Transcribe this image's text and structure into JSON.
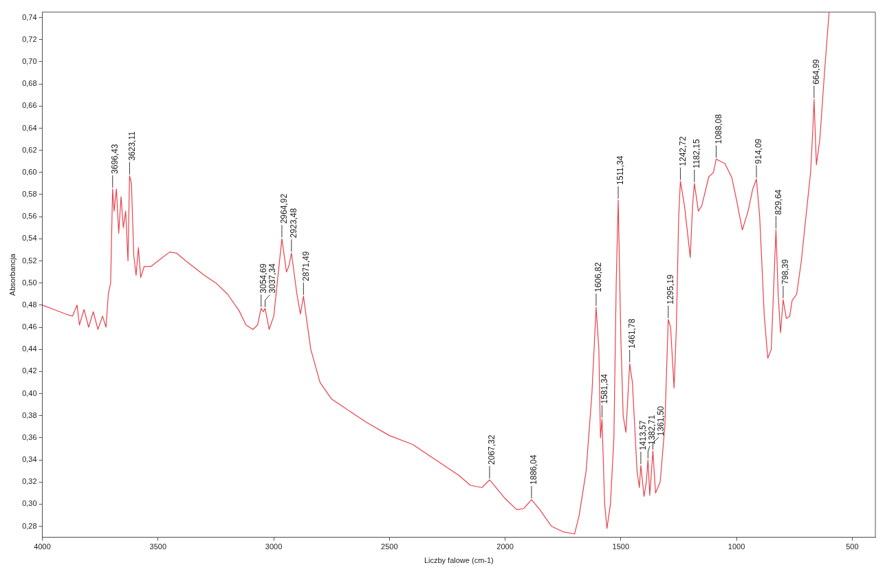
{
  "chart_data": {
    "type": "line",
    "xlabel": "Liczby falowe (cm-1)",
    "ylabel": "Absorbancja",
    "xlim": [
      4000,
      400
    ],
    "xticks": [
      4000,
      3500,
      3000,
      2500,
      2000,
      1500,
      1000,
      500
    ],
    "ylim": [
      0.27,
      0.745
    ],
    "yticks": [
      {
        "value": 0.28,
        "label": "0,28"
      },
      {
        "value": 0.3,
        "label": "0,30"
      },
      {
        "value": 0.32,
        "label": "0,32"
      },
      {
        "value": 0.34,
        "label": "0,34"
      },
      {
        "value": 0.36,
        "label": "0,36"
      },
      {
        "value": 0.38,
        "label": "0,38"
      },
      {
        "value": 0.4,
        "label": "0,40"
      },
      {
        "value": 0.42,
        "label": "0,42"
      },
      {
        "value": 0.44,
        "label": "0,44"
      },
      {
        "value": 0.46,
        "label": "0,46"
      },
      {
        "value": 0.48,
        "label": "0,48"
      },
      {
        "value": 0.5,
        "label": "0,50"
      },
      {
        "value": 0.52,
        "label": "0,52"
      },
      {
        "value": 0.54,
        "label": "0,54"
      },
      {
        "value": 0.56,
        "label": "0,56"
      },
      {
        "value": 0.58,
        "label": "0,58"
      },
      {
        "value": 0.6,
        "label": "0,60"
      },
      {
        "value": 0.62,
        "label": "0,62"
      },
      {
        "value": 0.64,
        "label": "0,64"
      },
      {
        "value": 0.66,
        "label": "0,66"
      },
      {
        "value": 0.68,
        "label": "0,68"
      },
      {
        "value": 0.7,
        "label": "0,70"
      },
      {
        "value": 0.72,
        "label": "0,72"
      },
      {
        "value": 0.74,
        "label": "0,74"
      }
    ],
    "grid": false,
    "legend": false,
    "marker": "none",
    "line_style": "solid",
    "series": [
      {
        "color": "#e8404a",
        "x": [
          4000,
          3950,
          3900,
          3870,
          3850,
          3840,
          3820,
          3800,
          3780,
          3760,
          3740,
          3725,
          3715,
          3705,
          3700,
          3696.43,
          3690,
          3680,
          3670,
          3660,
          3650,
          3640,
          3630,
          3623.11,
          3615,
          3605,
          3595,
          3585,
          3575,
          3560,
          3530,
          3500,
          3450,
          3420,
          3380,
          3300,
          3250,
          3200,
          3150,
          3120,
          3090,
          3070,
          3054.69,
          3045,
          3037.34,
          3020,
          3000,
          2980,
          2964.92,
          2945,
          2935,
          2923.48,
          2900,
          2885,
          2871.49,
          2860,
          2840,
          2800,
          2750,
          2700,
          2600,
          2500,
          2400,
          2300,
          2200,
          2150,
          2100,
          2067.32,
          2000,
          1950,
          1920,
          1886.04,
          1850,
          1800,
          1750,
          1700,
          1680,
          1650,
          1625,
          1606.82,
          1595,
          1588,
          1581.34,
          1570,
          1560,
          1545,
          1530,
          1520,
          1511.34,
          1500,
          1490,
          1478,
          1461.78,
          1450,
          1430,
          1420,
          1413.57,
          1400,
          1390,
          1382.71,
          1375,
          1361.5,
          1350,
          1330,
          1310,
          1295.19,
          1285,
          1270,
          1260,
          1250,
          1242.72,
          1225,
          1200,
          1190,
          1182.15,
          1165,
          1150,
          1120,
          1100,
          1088.08,
          1050,
          1020,
          1000,
          975,
          950,
          930,
          914.09,
          900,
          880,
          865,
          850,
          835,
          829.64,
          820,
          810,
          798.39,
          785,
          770,
          760,
          740,
          720,
          700,
          680,
          670,
          664.99,
          655,
          640,
          620,
          600
        ],
        "values": [
          0.48,
          0.476,
          0.472,
          0.47,
          0.48,
          0.462,
          0.476,
          0.46,
          0.474,
          0.458,
          0.47,
          0.46,
          0.49,
          0.5,
          0.55,
          0.585,
          0.565,
          0.585,
          0.545,
          0.578,
          0.55,
          0.565,
          0.52,
          0.597,
          0.59,
          0.525,
          0.507,
          0.532,
          0.505,
          0.515,
          0.515,
          0.52,
          0.528,
          0.527,
          0.52,
          0.507,
          0.5,
          0.49,
          0.475,
          0.462,
          0.458,
          0.462,
          0.477,
          0.474,
          0.477,
          0.458,
          0.47,
          0.51,
          0.54,
          0.51,
          0.515,
          0.527,
          0.49,
          0.472,
          0.488,
          0.47,
          0.44,
          0.41,
          0.395,
          0.388,
          0.374,
          0.362,
          0.354,
          0.34,
          0.326,
          0.317,
          0.315,
          0.322,
          0.305,
          0.295,
          0.296,
          0.304,
          0.295,
          0.28,
          0.275,
          0.273,
          0.29,
          0.33,
          0.4,
          0.478,
          0.44,
          0.36,
          0.377,
          0.3,
          0.278,
          0.3,
          0.36,
          0.5,
          0.575,
          0.45,
          0.38,
          0.365,
          0.427,
          0.41,
          0.33,
          0.315,
          0.335,
          0.307,
          0.32,
          0.34,
          0.308,
          0.348,
          0.31,
          0.32,
          0.37,
          0.467,
          0.46,
          0.405,
          0.46,
          0.56,
          0.592,
          0.57,
          0.523,
          0.57,
          0.59,
          0.565,
          0.57,
          0.596,
          0.6,
          0.612,
          0.608,
          0.595,
          0.575,
          0.548,
          0.565,
          0.585,
          0.594,
          0.56,
          0.47,
          0.432,
          0.44,
          0.52,
          0.548,
          0.49,
          0.455,
          0.485,
          0.468,
          0.47,
          0.484,
          0.49,
          0.52,
          0.56,
          0.6,
          0.64,
          0.666,
          0.607,
          0.63,
          0.69,
          0.745
        ]
      }
    ],
    "annotations": [
      {
        "text": "3696,43",
        "x": 3696.43,
        "y": 0.585
      },
      {
        "text": "3623,11",
        "x": 3623.11,
        "y": 0.597
      },
      {
        "text": "3054,69",
        "x": 3054.69,
        "y": 0.477
      },
      {
        "text": "3037,34",
        "x": 3037.34,
        "y": 0.477
      },
      {
        "text": "2964,92",
        "x": 2964.92,
        "y": 0.54
      },
      {
        "text": "2923,48",
        "x": 2923.48,
        "y": 0.527
      },
      {
        "text": "2871,49",
        "x": 2871.49,
        "y": 0.488
      },
      {
        "text": "2067,32",
        "x": 2067.32,
        "y": 0.322
      },
      {
        "text": "1886,04",
        "x": 1886.04,
        "y": 0.304
      },
      {
        "text": "1606,82",
        "x": 1606.82,
        "y": 0.478
      },
      {
        "text": "1581,34",
        "x": 1581.34,
        "y": 0.377
      },
      {
        "text": "1511,34",
        "x": 1511.34,
        "y": 0.575
      },
      {
        "text": "1461,78",
        "x": 1461.78,
        "y": 0.427
      },
      {
        "text": "1413,57",
        "x": 1413.57,
        "y": 0.335
      },
      {
        "text": "1382,71",
        "x": 1382.71,
        "y": 0.34
      },
      {
        "text": "1361,50",
        "x": 1361.5,
        "y": 0.348
      },
      {
        "text": "1295,19",
        "x": 1295.19,
        "y": 0.467
      },
      {
        "text": "1242,72",
        "x": 1242.72,
        "y": 0.592
      },
      {
        "text": "1182,15",
        "x": 1182.15,
        "y": 0.59
      },
      {
        "text": "1088,08",
        "x": 1088.08,
        "y": 0.612
      },
      {
        "text": "914,09",
        "x": 914.09,
        "y": 0.594
      },
      {
        "text": "829,64",
        "x": 829.64,
        "y": 0.548
      },
      {
        "text": "798,39",
        "x": 798.39,
        "y": 0.485
      },
      {
        "text": "664,99",
        "x": 664.99,
        "y": 0.666
      }
    ]
  }
}
